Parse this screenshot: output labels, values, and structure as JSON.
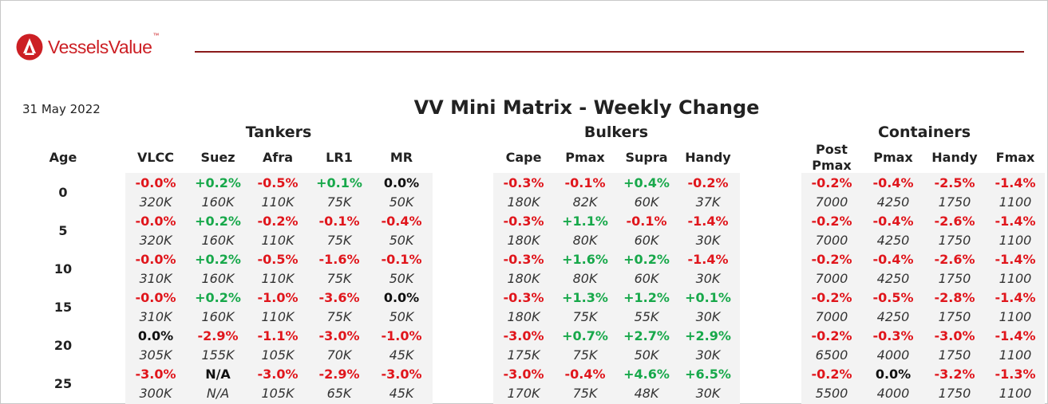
{
  "brand": {
    "name": "VesselsValue",
    "tm": "™",
    "logo_icon": "vesselsvalue-logo-icon"
  },
  "date": "31 May 2022",
  "title": "VV Mini Matrix - Weekly Change",
  "age_label": "Age",
  "colors": {
    "negative": "#e0161c",
    "positive": "#17a84a",
    "neutral": "#111111",
    "brand": "#cc1f24"
  },
  "ages": [
    "0",
    "5",
    "10",
    "15",
    "20",
    "25"
  ],
  "groups": [
    {
      "name": "Tankers",
      "columns": [
        {
          "label": "VLCC",
          "rows": [
            {
              "change": "-0.0%",
              "value": "320K"
            },
            {
              "change": "-0.0%",
              "value": "320K"
            },
            {
              "change": "-0.0%",
              "value": "310K"
            },
            {
              "change": "-0.0%",
              "value": "310K"
            },
            {
              "change": "0.0%",
              "value": "305K"
            },
            {
              "change": "-3.0%",
              "value": "300K"
            }
          ]
        },
        {
          "label": "Suez",
          "rows": [
            {
              "change": "+0.2%",
              "value": "160K"
            },
            {
              "change": "+0.2%",
              "value": "160K"
            },
            {
              "change": "+0.2%",
              "value": "160K"
            },
            {
              "change": "+0.2%",
              "value": "160K"
            },
            {
              "change": "-2.9%",
              "value": "155K"
            },
            {
              "change": "N/A",
              "value": "N/A"
            }
          ]
        },
        {
          "label": "Afra",
          "rows": [
            {
              "change": "-0.5%",
              "value": "110K"
            },
            {
              "change": "-0.2%",
              "value": "110K"
            },
            {
              "change": "-0.5%",
              "value": "110K"
            },
            {
              "change": "-1.0%",
              "value": "110K"
            },
            {
              "change": "-1.1%",
              "value": "105K"
            },
            {
              "change": "-3.0%",
              "value": "105K"
            }
          ]
        },
        {
          "label": "LR1",
          "rows": [
            {
              "change": "+0.1%",
              "value": "75K"
            },
            {
              "change": "-0.1%",
              "value": "75K"
            },
            {
              "change": "-1.6%",
              "value": "75K"
            },
            {
              "change": "-3.6%",
              "value": "75K"
            },
            {
              "change": "-3.0%",
              "value": "70K"
            },
            {
              "change": "-2.9%",
              "value": "65K"
            }
          ]
        },
        {
          "label": "MR",
          "rows": [
            {
              "change": "0.0%",
              "value": "50K"
            },
            {
              "change": "-0.4%",
              "value": "50K"
            },
            {
              "change": "-0.1%",
              "value": "50K"
            },
            {
              "change": "0.0%",
              "value": "50K"
            },
            {
              "change": "-1.0%",
              "value": "45K"
            },
            {
              "change": "-3.0%",
              "value": "45K"
            }
          ]
        }
      ]
    },
    {
      "name": "Bulkers",
      "columns": [
        {
          "label": "Cape",
          "rows": [
            {
              "change": "-0.3%",
              "value": "180K"
            },
            {
              "change": "-0.3%",
              "value": "180K"
            },
            {
              "change": "-0.3%",
              "value": "180K"
            },
            {
              "change": "-0.3%",
              "value": "180K"
            },
            {
              "change": "-3.0%",
              "value": "175K"
            },
            {
              "change": "-3.0%",
              "value": "170K"
            }
          ]
        },
        {
          "label": "Pmax",
          "rows": [
            {
              "change": "-0.1%",
              "value": "82K"
            },
            {
              "change": "+1.1%",
              "value": "80K"
            },
            {
              "change": "+1.6%",
              "value": "80K"
            },
            {
              "change": "+1.3%",
              "value": "75K"
            },
            {
              "change": "+0.7%",
              "value": "75K"
            },
            {
              "change": "-0.4%",
              "value": "75K"
            }
          ]
        },
        {
          "label": "Supra",
          "rows": [
            {
              "change": "+0.4%",
              "value": "60K"
            },
            {
              "change": "-0.1%",
              "value": "60K"
            },
            {
              "change": "+0.2%",
              "value": "60K"
            },
            {
              "change": "+1.2%",
              "value": "55K"
            },
            {
              "change": "+2.7%",
              "value": "50K"
            },
            {
              "change": "+4.6%",
              "value": "48K"
            }
          ]
        },
        {
          "label": "Handy",
          "rows": [
            {
              "change": "-0.2%",
              "value": "37K"
            },
            {
              "change": "-1.4%",
              "value": "30K"
            },
            {
              "change": "-1.4%",
              "value": "30K"
            },
            {
              "change": "+0.1%",
              "value": "30K"
            },
            {
              "change": "+2.9%",
              "value": "30K"
            },
            {
              "change": "+6.5%",
              "value": "30K"
            }
          ]
        }
      ]
    },
    {
      "name": "Containers",
      "columns": [
        {
          "label": "Post Pmax",
          "rows": [
            {
              "change": "-0.2%",
              "value": "7000"
            },
            {
              "change": "-0.2%",
              "value": "7000"
            },
            {
              "change": "-0.2%",
              "value": "7000"
            },
            {
              "change": "-0.2%",
              "value": "7000"
            },
            {
              "change": "-0.2%",
              "value": "6500"
            },
            {
              "change": "-0.2%",
              "value": "5500"
            }
          ]
        },
        {
          "label": "Pmax",
          "rows": [
            {
              "change": "-0.4%",
              "value": "4250"
            },
            {
              "change": "-0.4%",
              "value": "4250"
            },
            {
              "change": "-0.4%",
              "value": "4250"
            },
            {
              "change": "-0.5%",
              "value": "4250"
            },
            {
              "change": "-0.3%",
              "value": "4000"
            },
            {
              "change": "0.0%",
              "value": "4000"
            }
          ]
        },
        {
          "label": "Handy",
          "rows": [
            {
              "change": "-2.5%",
              "value": "1750"
            },
            {
              "change": "-2.6%",
              "value": "1750"
            },
            {
              "change": "-2.6%",
              "value": "1750"
            },
            {
              "change": "-2.8%",
              "value": "1750"
            },
            {
              "change": "-3.0%",
              "value": "1750"
            },
            {
              "change": "-3.2%",
              "value": "1750"
            }
          ]
        },
        {
          "label": "Fmax",
          "rows": [
            {
              "change": "-1.4%",
              "value": "1100"
            },
            {
              "change": "-1.4%",
              "value": "1100"
            },
            {
              "change": "-1.4%",
              "value": "1100"
            },
            {
              "change": "-1.4%",
              "value": "1100"
            },
            {
              "change": "-1.4%",
              "value": "1100"
            },
            {
              "change": "-1.3%",
              "value": "1100"
            }
          ]
        }
      ]
    }
  ]
}
